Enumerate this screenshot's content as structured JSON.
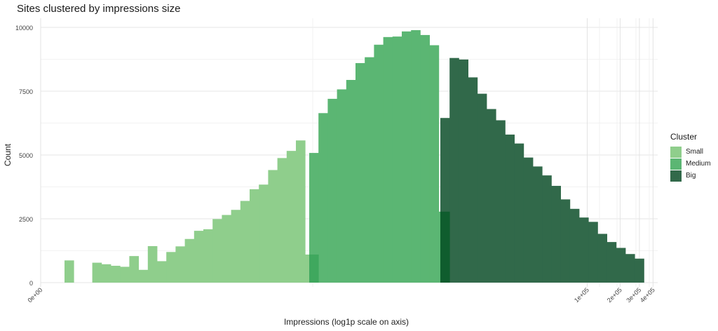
{
  "chart_data": {
    "type": "bar",
    "title": "Sites clustered by impressions size",
    "xlabel": "Impressions (log1p scale on axis)",
    "ylabel": "Count",
    "x_scale": "log1p",
    "ylim": [
      0,
      10000
    ],
    "y_ticks": [
      0,
      2500,
      5000,
      7500,
      10000
    ],
    "x_ticks": [
      "0e+00",
      "1e+05",
      "2e+05",
      "3e+05",
      "4e+05"
    ],
    "x_tick_values": [
      0,
      100000,
      200000,
      300000,
      400000
    ],
    "grid": true,
    "legend_title": "Cluster",
    "legend_position": "right",
    "series": [
      {
        "name": "Small",
        "color": "#8fce8c",
        "values": [
          870,
          0,
          0,
          780,
          720,
          660,
          620,
          1040,
          500,
          1430,
          840,
          1200,
          1420,
          1710,
          2030,
          2090,
          2490,
          2650,
          2850,
          3200,
          3660,
          3840,
          4410,
          4880,
          5160,
          5570,
          1100
        ]
      },
      {
        "name": "Medium",
        "color": "#5bb673",
        "values": [
          5080,
          6640,
          7200,
          7570,
          7940,
          8600,
          8830,
          9320,
          9620,
          9640,
          9840,
          9890,
          9700,
          9300,
          2780
        ]
      },
      {
        "name": "Big",
        "color": "#31694a",
        "values": [
          6450,
          8800,
          8740,
          8040,
          7400,
          6800,
          6360,
          5800,
          5450,
          4900,
          4550,
          4200,
          3790,
          3260,
          2890,
          2550,
          2380,
          1910,
          1590,
          1360,
          1120,
          940
        ]
      }
    ]
  }
}
